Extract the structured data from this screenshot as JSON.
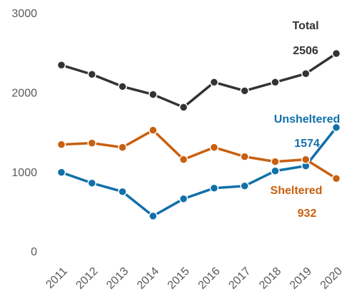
{
  "chart_data": {
    "type": "line",
    "categories": [
      "2011",
      "2012",
      "2013",
      "2014",
      "2015",
      "2016",
      "2017",
      "2018",
      "2019",
      "2020"
    ],
    "series": [
      {
        "name": "Total",
        "color": "#333333",
        "values": [
          2360,
          2243,
          2090,
          1990,
          1829,
          2144,
          2036,
          2144,
          2252,
          2506
        ]
      },
      {
        "name": "Unsheltered",
        "color": "#1170aa",
        "values": [
          1009,
          874,
          766,
          459,
          676,
          811,
          838,
          1027,
          1090,
          1574
        ]
      },
      {
        "name": "Sheltered",
        "color": "#c9600f",
        "values": [
          1360,
          1378,
          1324,
          1540,
          1171,
          1324,
          1207,
          1144,
          1171,
          932
        ]
      }
    ],
    "ylim": [
      0,
      3000
    ],
    "yticks": [
      0,
      1000,
      2000,
      3000
    ],
    "grid": false
  }
}
